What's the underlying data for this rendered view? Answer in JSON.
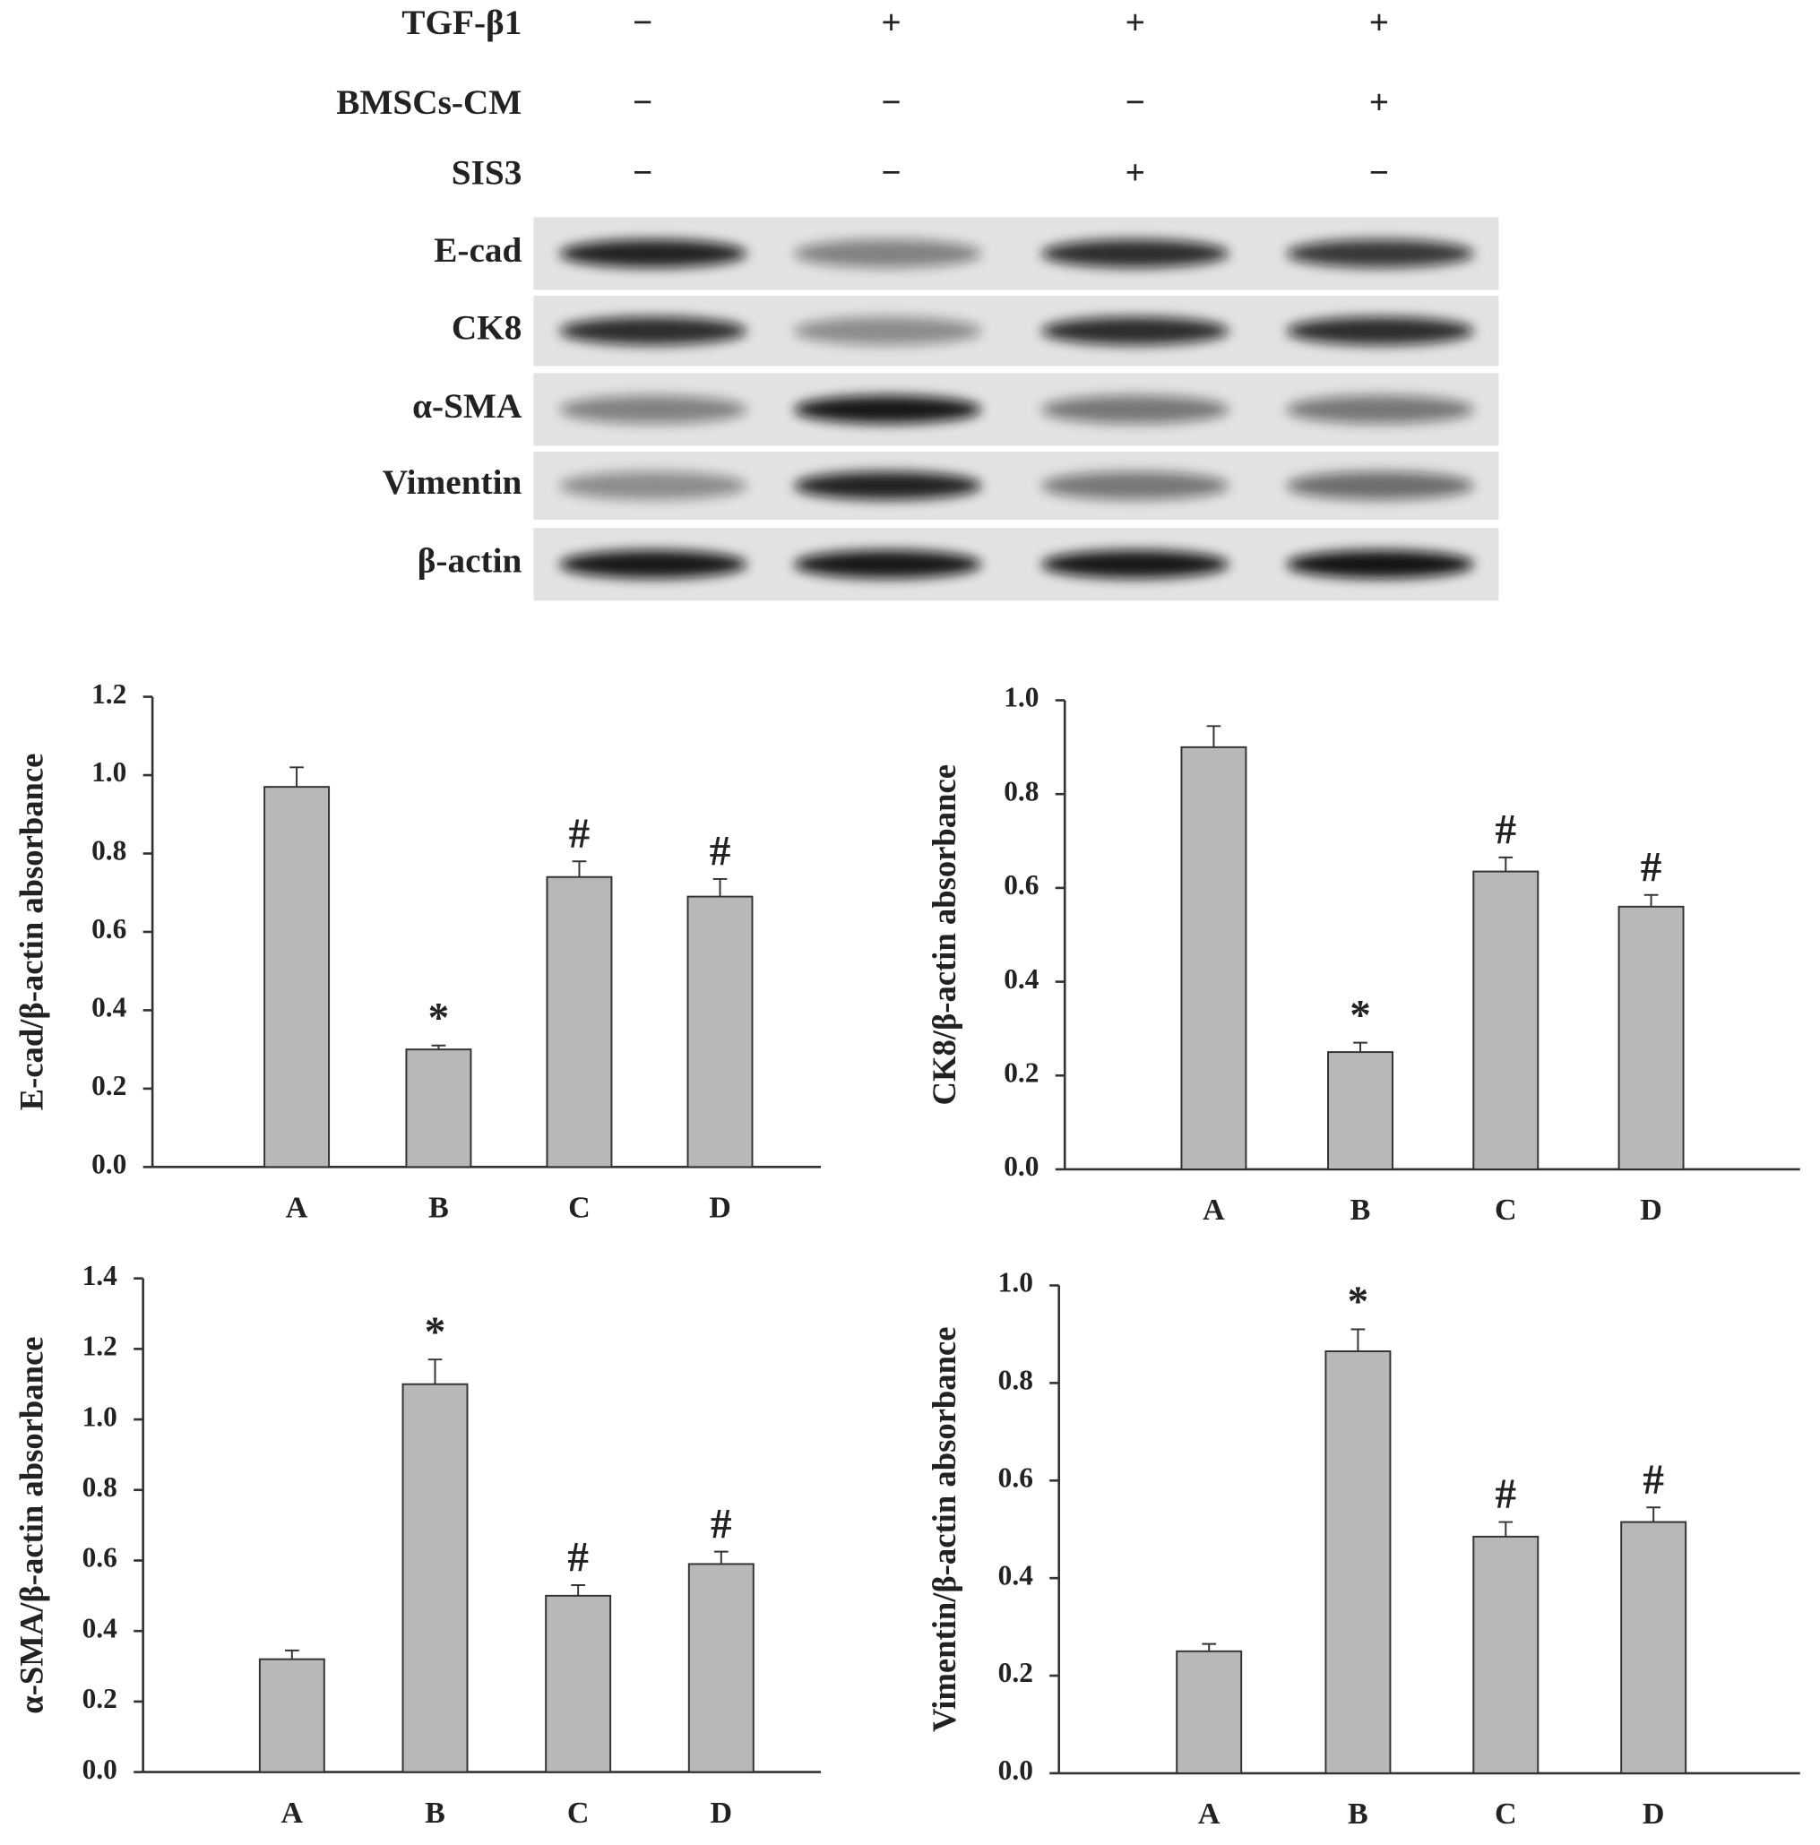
{
  "blot": {
    "treatments": [
      {
        "label": "TGF-β1",
        "signs": [
          "−",
          "+",
          "+",
          "+"
        ]
      },
      {
        "label": "BMSCs-CM",
        "signs": [
          "−",
          "−",
          "−",
          "+"
        ]
      },
      {
        "label": "SIS3",
        "signs": [
          "−",
          "−",
          "+",
          "−"
        ]
      }
    ],
    "bands": [
      "E-cad",
      "CK8",
      "α-SMA",
      "Vimentin",
      "β-actin"
    ]
  },
  "chart_data": [
    {
      "type": "bar",
      "ylabel": "E-cad/β-actin absorbance",
      "categories": [
        "A",
        "B",
        "C",
        "D"
      ],
      "values": [
        0.97,
        0.3,
        0.74,
        0.69
      ],
      "errors": [
        0.05,
        0.01,
        0.04,
        0.045
      ],
      "markers": [
        null,
        "*",
        "#",
        "#"
      ],
      "color": "#b8b8b8",
      "ylim": [
        0,
        1.2
      ],
      "yticks": [
        {
          "value": 0,
          "label": "0.0"
        },
        0.2,
        0.4,
        0.6,
        0.8,
        {
          "value": 1,
          "label": "1.0"
        },
        1.2
      ]
    },
    {
      "type": "bar",
      "ylabel": "CK8/β-actin absorbance",
      "categories": [
        "A",
        "B",
        "C",
        "D"
      ],
      "values": [
        0.9,
        0.25,
        0.635,
        0.56
      ],
      "errors": [
        0.045,
        0.02,
        0.03,
        0.025
      ],
      "markers": [
        null,
        "*",
        "#",
        "#"
      ],
      "color": "#b8b8b8",
      "ylim": [
        0,
        1.0
      ],
      "yticks": [
        {
          "value": 0,
          "label": "0.0"
        },
        0.2,
        0.4,
        0.6,
        0.8,
        {
          "value": 1,
          "label": "1.0"
        }
      ]
    },
    {
      "type": "bar",
      "ylabel": "α-SMA/β-actin absorbance",
      "categories": [
        "A",
        "B",
        "C",
        "D"
      ],
      "values": [
        0.32,
        1.1,
        0.5,
        0.59
      ],
      "errors": [
        0.025,
        0.07,
        0.03,
        0.035
      ],
      "markers": [
        null,
        "*",
        "#",
        "#"
      ],
      "color": "#b8b8b8",
      "ylim": [
        0,
        1.4
      ],
      "yticks": [
        {
          "value": 0,
          "label": "0.0"
        },
        0.2,
        0.4,
        0.6,
        0.8,
        {
          "value": 1,
          "label": "1.0"
        },
        1.2,
        1.4
      ]
    },
    {
      "type": "bar",
      "ylabel": "Vimentin/β-actin absorbance",
      "categories": [
        "A",
        "B",
        "C",
        "D"
      ],
      "values": [
        0.25,
        0.865,
        0.485,
        0.515
      ],
      "errors": [
        0.015,
        0.045,
        0.03,
        0.03
      ],
      "markers": [
        null,
        "*",
        "#",
        "#"
      ],
      "color": "#b8b8b8",
      "ylim": [
        0,
        1.0
      ],
      "yticks": [
        {
          "value": 0,
          "label": "0.0"
        },
        0.2,
        0.4,
        0.6,
        0.8,
        {
          "value": 1,
          "label": "1.0"
        }
      ]
    }
  ]
}
